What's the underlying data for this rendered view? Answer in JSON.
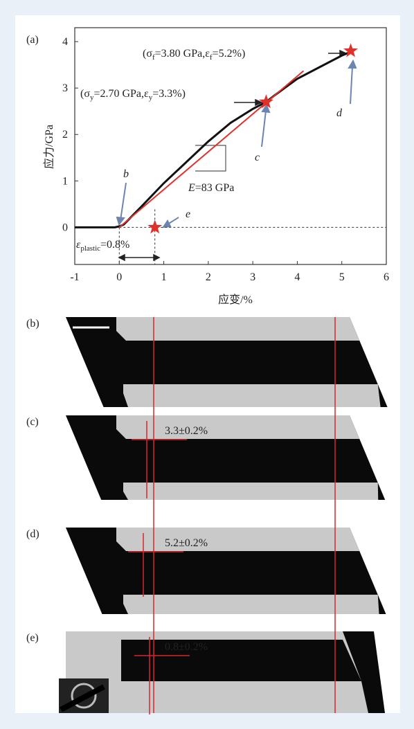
{
  "chart_data": {
    "type": "line",
    "panel_label": "(a)",
    "x_label": "应变/%",
    "y_label": "应力/GPa",
    "xlim": [
      -1,
      6
    ],
    "ylim": [
      -0.8,
      4.3
    ],
    "xticks": [
      -1,
      0,
      1,
      2,
      3,
      4,
      5,
      6
    ],
    "yticks": [
      0,
      1,
      2,
      3,
      4
    ],
    "series": [
      {
        "color": "#111111",
        "x": [
          -1,
          -0.5,
          -0.1,
          0,
          0.1,
          0.5,
          1,
          1.5,
          2,
          2.5,
          3,
          3.3,
          3.5,
          4,
          4.5,
          5,
          5.25
        ],
        "values": [
          0,
          0,
          0,
          0.02,
          0.06,
          0.45,
          0.95,
          1.4,
          1.85,
          2.25,
          2.55,
          2.7,
          2.85,
          3.2,
          3.45,
          3.7,
          3.8
        ]
      },
      {
        "color": "#e0302a",
        "x": [
          0,
          4.14
        ],
        "values": [
          0,
          3.37
        ]
      }
    ],
    "points": [
      {
        "label": "c",
        "x": 3.3,
        "y": 2.7
      },
      {
        "label": "d",
        "x": 5.2,
        "y": 3.8
      },
      {
        "label": "e",
        "x": 0.8,
        "y": 0
      }
    ],
    "point_color": "#e0302a",
    "annotations": {
      "b": "b",
      "fracture": [
        "(σ",
        "f",
        "=3.80 GPa,ε",
        "f",
        "=5.2%)"
      ],
      "yield": [
        "(σ",
        "y",
        "=2.70 GPa,ε",
        "y",
        "=3.3%)"
      ],
      "modulus": [
        "E",
        "=83 GPa"
      ],
      "plastic": [
        "ε",
        "plastic",
        "=0.8%"
      ]
    }
  },
  "panels": [
    {
      "label": "(b)"
    },
    {
      "label": "(c)",
      "note": "3.3±0.2%"
    },
    {
      "label": "(d)",
      "note": "5.2±0.2%"
    },
    {
      "label": "(e)",
      "note": "0.8±0.2%"
    }
  ]
}
